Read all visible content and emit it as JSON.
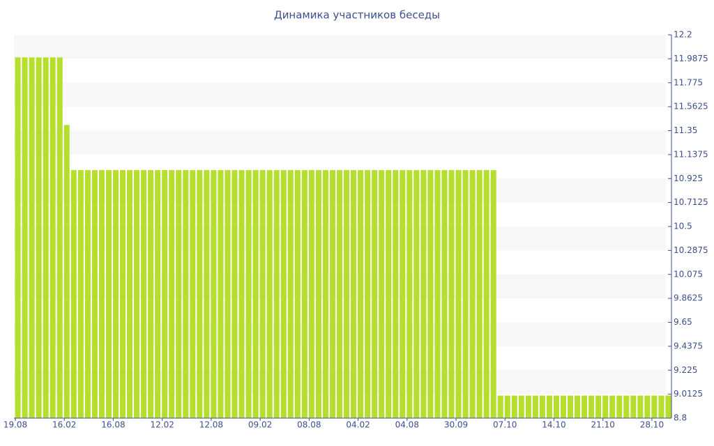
{
  "chart_data": {
    "type": "bar",
    "title": "Динамика участников беседы",
    "categories": [
      "19.08",
      null,
      null,
      null,
      null,
      null,
      null,
      "16.02",
      null,
      null,
      null,
      null,
      null,
      null,
      "16.08",
      null,
      null,
      null,
      null,
      null,
      null,
      "12.02",
      null,
      null,
      null,
      null,
      null,
      null,
      "12.08",
      null,
      null,
      null,
      null,
      null,
      null,
      "09.02",
      null,
      null,
      null,
      null,
      null,
      null,
      "08.08",
      null,
      null,
      null,
      null,
      null,
      null,
      "04.02",
      null,
      null,
      null,
      null,
      null,
      null,
      "04.08",
      null,
      null,
      null,
      null,
      null,
      null,
      "30.09",
      null,
      null,
      null,
      null,
      null,
      null,
      "07.10",
      null,
      null,
      null,
      null,
      null,
      null,
      "14.10",
      null,
      null,
      null,
      null,
      null,
      null,
      "21.10",
      null,
      null,
      null,
      null,
      null,
      null,
      "28.10",
      null,
      null
    ],
    "values": [
      12,
      12,
      12,
      12,
      12,
      12,
      12,
      11.4,
      11,
      11,
      11,
      11,
      11,
      11,
      11,
      11,
      11,
      11,
      11,
      11,
      11,
      11,
      11,
      11,
      11,
      11,
      11,
      11,
      11,
      11,
      11,
      11,
      11,
      11,
      11,
      11,
      11,
      11,
      11,
      11,
      11,
      11,
      11,
      11,
      11,
      11,
      11,
      11,
      11,
      11,
      11,
      11,
      11,
      11,
      11,
      11,
      11,
      11,
      11,
      11,
      11,
      11,
      11,
      11,
      11,
      11,
      11,
      11,
      11,
      9,
      9,
      9,
      9,
      9,
      9,
      9,
      9,
      9,
      9,
      9,
      9,
      9,
      9,
      9,
      9,
      9,
      9,
      9,
      9,
      9,
      9,
      9,
      9,
      9
    ],
    "color": "#b5de2e",
    "ylim": [
      8.8,
      12.2
    ],
    "yticks": [
      8.8,
      9.0125,
      9.225,
      9.4375,
      9.65,
      9.8625,
      10.075,
      10.2875,
      10.5,
      10.7125,
      10.925,
      11.1375,
      11.35,
      11.5625,
      11.775,
      11.9875,
      12.2
    ],
    "grid": true
  }
}
